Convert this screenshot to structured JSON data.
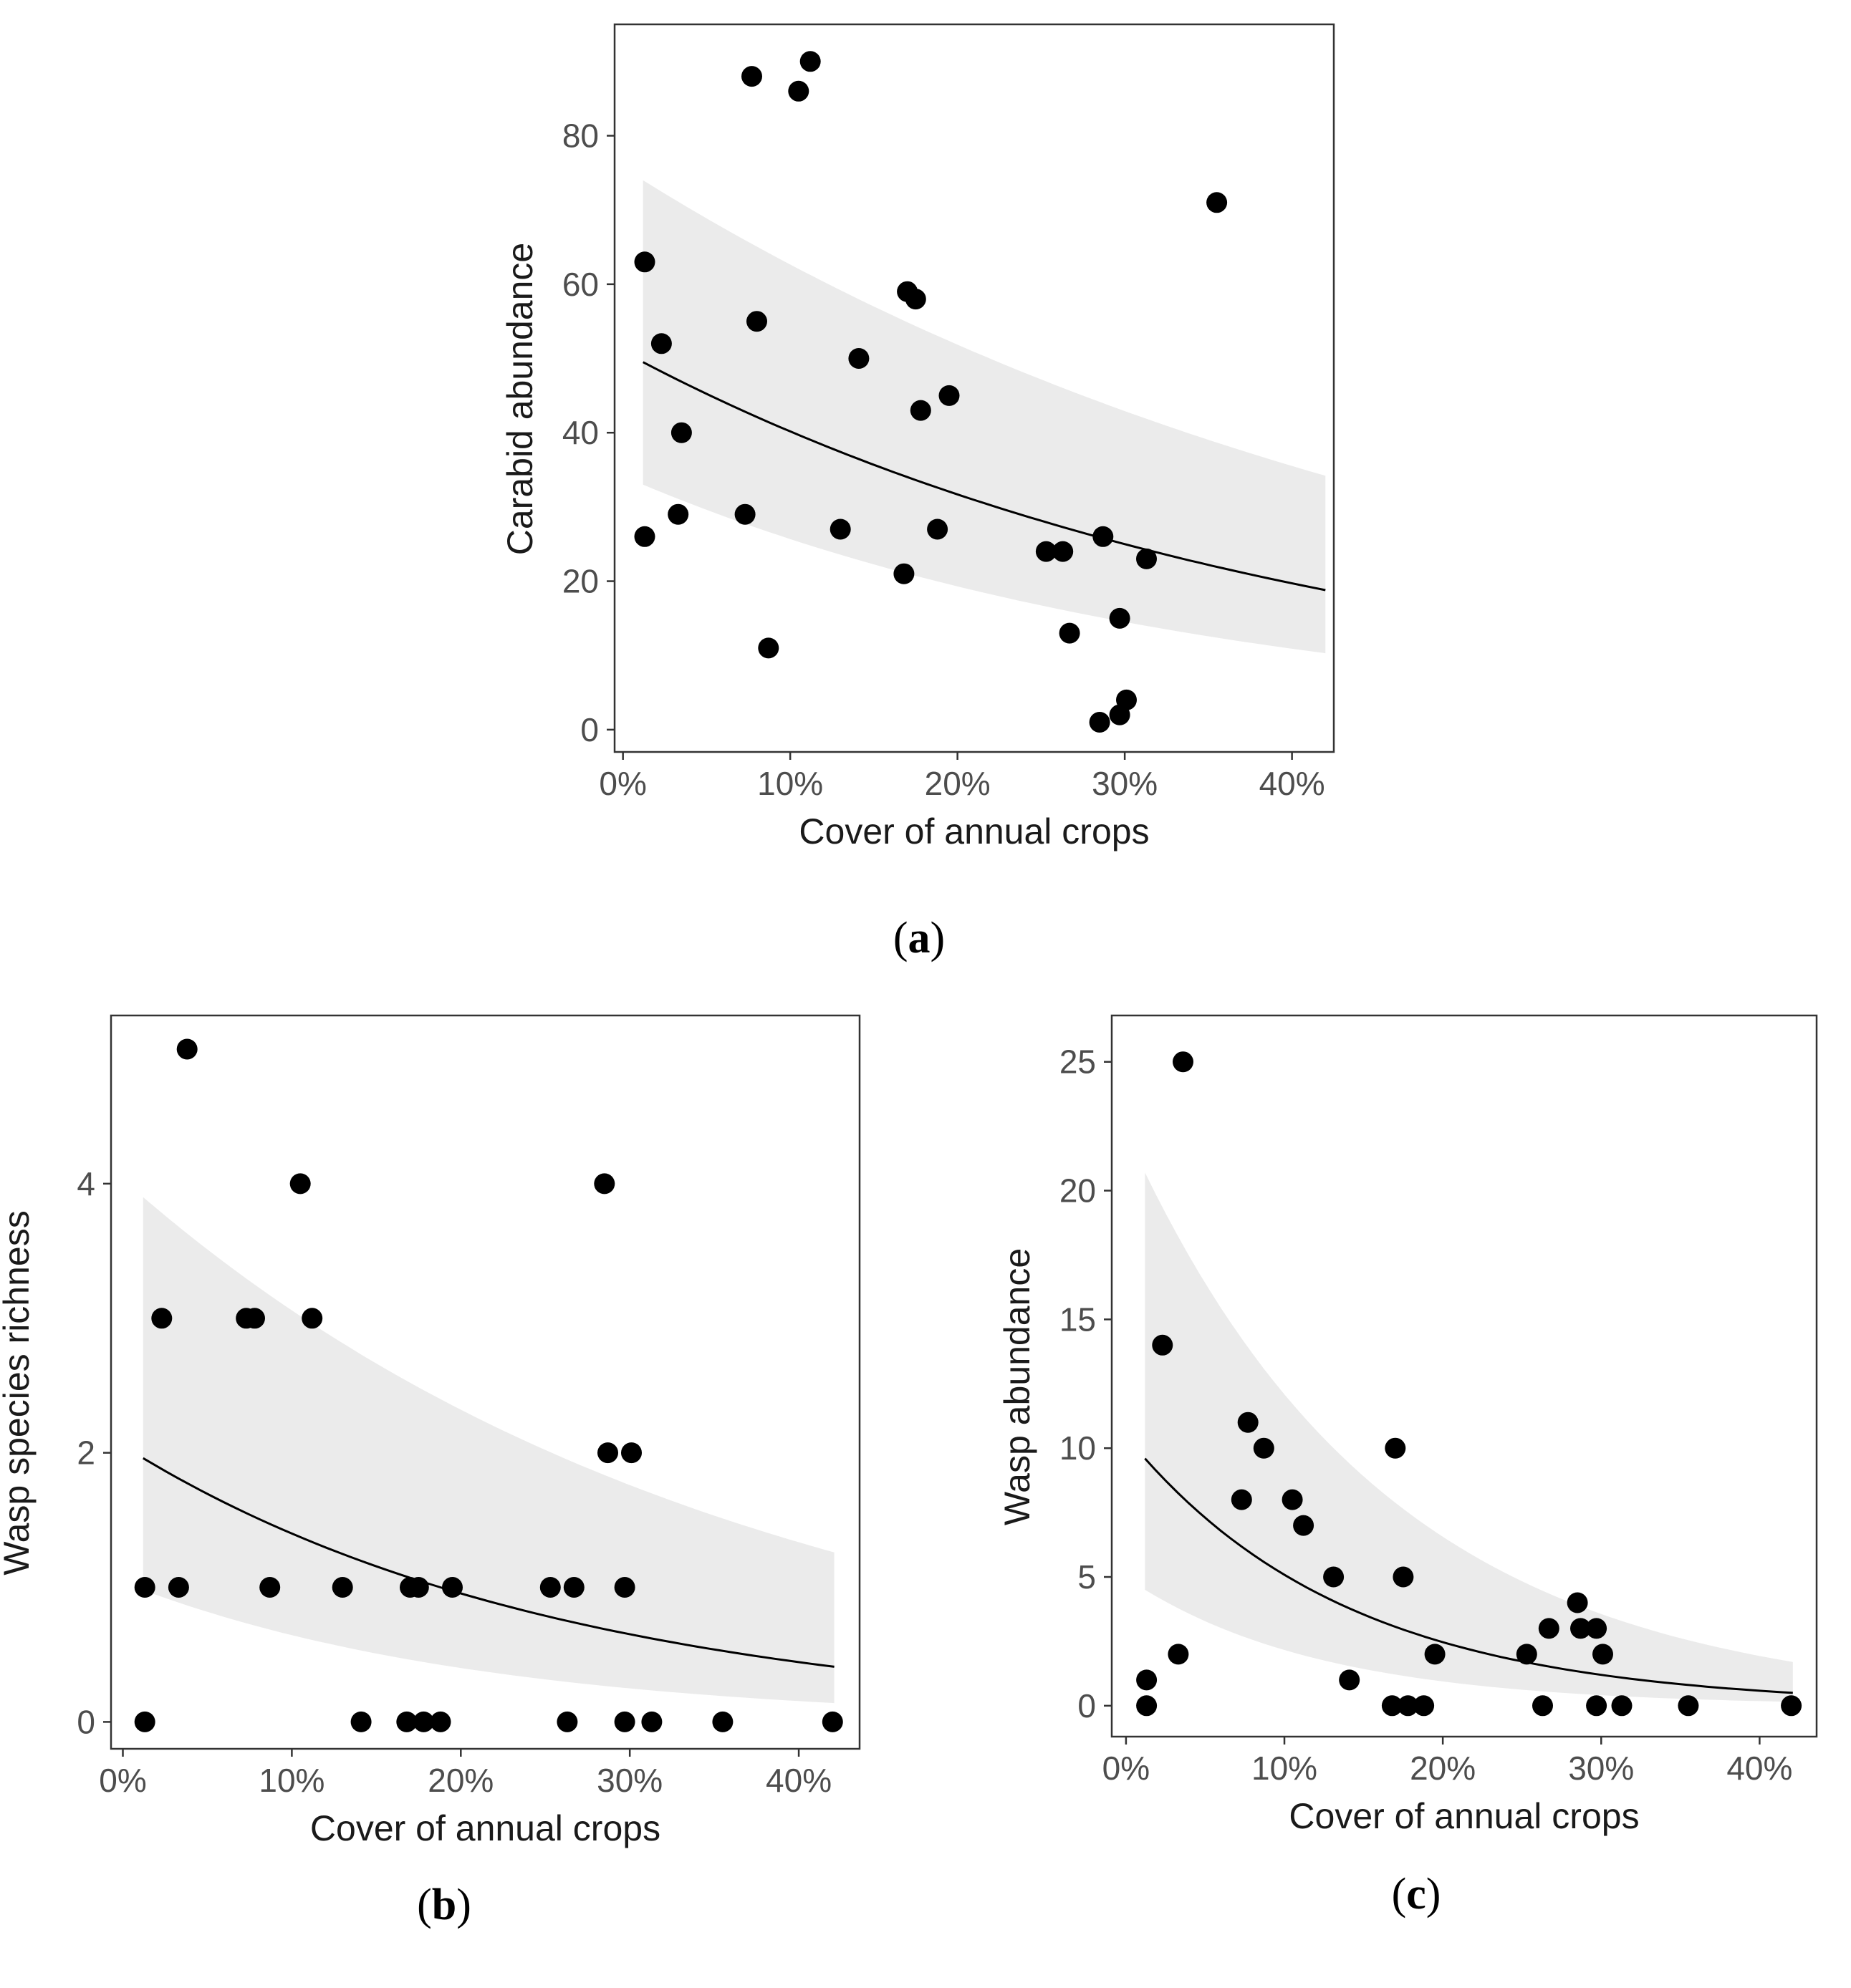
{
  "chart_data": [
    {
      "id": "a",
      "type": "scatter",
      "caption_letter": "a",
      "xlabel": "Cover of annual crops",
      "ylabel": "Carabid abundance",
      "xlim": [
        -0.5,
        42.5
      ],
      "ylim": [
        -3,
        95
      ],
      "xticks": [
        0,
        10,
        20,
        30,
        40
      ],
      "xtick_labels": [
        "0%",
        "10%",
        "20%",
        "30%",
        "40%"
      ],
      "yticks": [
        0,
        20,
        40,
        60,
        80
      ],
      "ytick_labels": [
        "0",
        "20",
        "40",
        "60",
        "80"
      ],
      "grid": false,
      "fit": {
        "x0": 1.2,
        "x1": 42,
        "fit_start": 49.5,
        "fit_end": 18.8,
        "lower_start": 33,
        "lower_end": 10.3,
        "upper_start": 74,
        "upper_end": 34.2
      },
      "points": [
        {
          "x": 1.3,
          "y": 63
        },
        {
          "x": 1.3,
          "y": 26
        },
        {
          "x": 2.3,
          "y": 52
        },
        {
          "x": 3.3,
          "y": 29
        },
        {
          "x": 3.5,
          "y": 40
        },
        {
          "x": 7.3,
          "y": 29
        },
        {
          "x": 7.7,
          "y": 88
        },
        {
          "x": 8.0,
          "y": 55
        },
        {
          "x": 8.7,
          "y": 11
        },
        {
          "x": 10.5,
          "y": 86
        },
        {
          "x": 11.2,
          "y": 90
        },
        {
          "x": 13.0,
          "y": 27
        },
        {
          "x": 14.1,
          "y": 50
        },
        {
          "x": 16.8,
          "y": 21
        },
        {
          "x": 17.0,
          "y": 59
        },
        {
          "x": 17.5,
          "y": 58
        },
        {
          "x": 17.8,
          "y": 43
        },
        {
          "x": 18.8,
          "y": 27
        },
        {
          "x": 19.5,
          "y": 45
        },
        {
          "x": 25.3,
          "y": 24
        },
        {
          "x": 26.3,
          "y": 24
        },
        {
          "x": 26.7,
          "y": 13
        },
        {
          "x": 28.5,
          "y": 1
        },
        {
          "x": 28.7,
          "y": 26
        },
        {
          "x": 29.7,
          "y": 15
        },
        {
          "x": 29.7,
          "y": 2
        },
        {
          "x": 30.1,
          "y": 4
        },
        {
          "x": 31.3,
          "y": 23
        },
        {
          "x": 35.5,
          "y": 71
        }
      ]
    },
    {
      "id": "b",
      "type": "scatter",
      "caption_letter": "b",
      "xlabel": "Cover of annual crops",
      "ylabel": "Wasp species richness",
      "xlim": [
        -0.7,
        43.6
      ],
      "ylim": [
        -0.2,
        5.25
      ],
      "xticks": [
        0,
        10,
        20,
        30,
        40
      ],
      "xtick_labels": [
        "0%",
        "10%",
        "20%",
        "30%",
        "40%"
      ],
      "yticks": [
        0,
        2,
        4
      ],
      "ytick_labels": [
        "0",
        "2",
        "4"
      ],
      "grid": false,
      "fit": {
        "x0": 1.2,
        "x1": 42.1,
        "fit_start": 1.96,
        "fit_end": 0.41,
        "lower_start": 0.98,
        "lower_end": 0.14,
        "upper_start": 3.9,
        "upper_end": 1.26
      },
      "points": [
        {
          "x": 1.3,
          "y": 1
        },
        {
          "x": 1.3,
          "y": 0
        },
        {
          "x": 2.3,
          "y": 3
        },
        {
          "x": 3.3,
          "y": 1
        },
        {
          "x": 3.8,
          "y": 5
        },
        {
          "x": 7.3,
          "y": 3
        },
        {
          "x": 7.8,
          "y": 3
        },
        {
          "x": 8.7,
          "y": 1
        },
        {
          "x": 10.5,
          "y": 4
        },
        {
          "x": 11.2,
          "y": 3
        },
        {
          "x": 13.0,
          "y": 1
        },
        {
          "x": 14.1,
          "y": 0
        },
        {
          "x": 16.8,
          "y": 0
        },
        {
          "x": 17.0,
          "y": 1
        },
        {
          "x": 17.5,
          "y": 1
        },
        {
          "x": 17.8,
          "y": 0
        },
        {
          "x": 18.8,
          "y": 0
        },
        {
          "x": 19.5,
          "y": 1
        },
        {
          "x": 25.3,
          "y": 1
        },
        {
          "x": 26.3,
          "y": 0
        },
        {
          "x": 26.7,
          "y": 1
        },
        {
          "x": 28.5,
          "y": 4
        },
        {
          "x": 28.7,
          "y": 2
        },
        {
          "x": 29.7,
          "y": 1
        },
        {
          "x": 29.7,
          "y": 0
        },
        {
          "x": 30.1,
          "y": 2
        },
        {
          "x": 31.3,
          "y": 0
        },
        {
          "x": 35.5,
          "y": 0
        },
        {
          "x": 42.0,
          "y": 0
        }
      ]
    },
    {
      "id": "c",
      "type": "scatter",
      "caption_letter": "c",
      "xlabel": "Cover of annual crops",
      "ylabel": "Wasp abundance",
      "xlim": [
        -0.9,
        43.6
      ],
      "ylim": [
        -1.2,
        26.8
      ],
      "xticks": [
        0,
        10,
        20,
        30,
        40
      ],
      "xtick_labels": [
        "0%",
        "10%",
        "20%",
        "30%",
        "40%"
      ],
      "yticks": [
        0,
        5,
        10,
        15,
        20,
        25
      ],
      "ytick_labels": [
        "0",
        "5",
        "10",
        "15",
        "20",
        "25"
      ],
      "grid": false,
      "fit": {
        "x0": 1.2,
        "x1": 42.1,
        "fit_start": 9.6,
        "fit_end": 0.5,
        "lower_start": 4.5,
        "lower_end": 0.15,
        "upper_start": 20.7,
        "upper_end": 1.7
      },
      "points": [
        {
          "x": 1.3,
          "y": 1
        },
        {
          "x": 1.3,
          "y": 0
        },
        {
          "x": 2.3,
          "y": 14
        },
        {
          "x": 3.3,
          "y": 2
        },
        {
          "x": 3.6,
          "y": 25
        },
        {
          "x": 7.3,
          "y": 8
        },
        {
          "x": 7.7,
          "y": 11
        },
        {
          "x": 8.7,
          "y": 10
        },
        {
          "x": 10.5,
          "y": 8
        },
        {
          "x": 11.2,
          "y": 7
        },
        {
          "x": 13.1,
          "y": 5
        },
        {
          "x": 14.1,
          "y": 1
        },
        {
          "x": 16.8,
          "y": 0
        },
        {
          "x": 17.0,
          "y": 10
        },
        {
          "x": 17.5,
          "y": 5
        },
        {
          "x": 17.8,
          "y": 0
        },
        {
          "x": 18.8,
          "y": 0
        },
        {
          "x": 19.5,
          "y": 2
        },
        {
          "x": 25.3,
          "y": 2
        },
        {
          "x": 26.3,
          "y": 0
        },
        {
          "x": 26.7,
          "y": 3
        },
        {
          "x": 28.5,
          "y": 4
        },
        {
          "x": 28.7,
          "y": 3
        },
        {
          "x": 29.7,
          "y": 3
        },
        {
          "x": 29.7,
          "y": 0
        },
        {
          "x": 30.1,
          "y": 2
        },
        {
          "x": 31.3,
          "y": 0
        },
        {
          "x": 35.5,
          "y": 0
        },
        {
          "x": 42.0,
          "y": 0
        }
      ]
    }
  ],
  "colors": {
    "ribbon": "#ebebeb",
    "points": "#000000",
    "fit_line": "#000000",
    "panel_border": "#333333",
    "ticks": "#333333"
  }
}
